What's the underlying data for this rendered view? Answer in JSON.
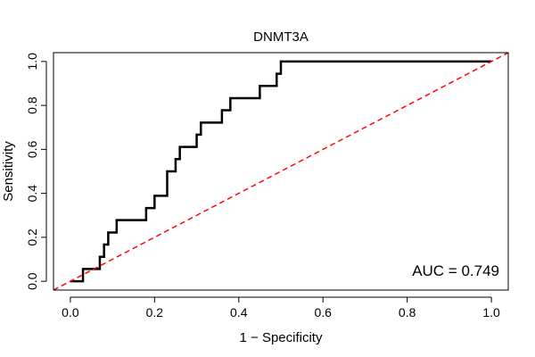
{
  "chart_data": {
    "type": "line",
    "title": "DNMT3A",
    "xlabel": "1 − Specificity",
    "ylabel": "Sensitivity",
    "xlim": [
      -0.04,
      1.04
    ],
    "ylim": [
      -0.04,
      1.04
    ],
    "xticks": [
      0.0,
      0.2,
      0.4,
      0.6,
      0.8,
      1.0
    ],
    "xtick_labels": [
      "0.0",
      "0.2",
      "0.4",
      "0.6",
      "0.8",
      "1.0"
    ],
    "yticks": [
      0.0,
      0.2,
      0.4,
      0.6,
      0.8,
      1.0
    ],
    "ytick_labels": [
      "0.0",
      "0.2",
      "0.4",
      "0.6",
      "0.8",
      "1.0"
    ],
    "grid": false,
    "annotation": "AUC = 0.749",
    "series": [
      {
        "color": "#000000",
        "style": "solid",
        "x": [
          0.0,
          0.03,
          0.03,
          0.06,
          0.07,
          0.07,
          0.08,
          0.08,
          0.09,
          0.09,
          0.11,
          0.11,
          0.18,
          0.18,
          0.2,
          0.2,
          0.23,
          0.23,
          0.25,
          0.25,
          0.26,
          0.26,
          0.3,
          0.3,
          0.31,
          0.31,
          0.36,
          0.36,
          0.38,
          0.38,
          0.45,
          0.45,
          0.49,
          0.49,
          0.5,
          0.5,
          1.0
        ],
        "y": [
          0.0,
          0.0,
          0.056,
          0.056,
          0.056,
          0.111,
          0.111,
          0.167,
          0.167,
          0.222,
          0.222,
          0.278,
          0.278,
          0.333,
          0.333,
          0.389,
          0.389,
          0.5,
          0.5,
          0.556,
          0.556,
          0.611,
          0.611,
          0.667,
          0.667,
          0.722,
          0.722,
          0.778,
          0.778,
          0.833,
          0.833,
          0.889,
          0.889,
          0.944,
          0.944,
          1.0,
          1.0
        ]
      },
      {
        "color": "#ff0000",
        "style": "dashed",
        "x": [
          -0.04,
          1.04
        ],
        "y": [
          -0.04,
          1.04
        ]
      }
    ]
  }
}
